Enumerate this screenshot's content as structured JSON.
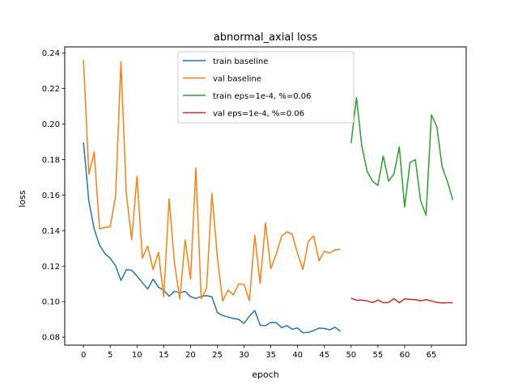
{
  "chart_data": {
    "type": "line",
    "title": "abnormal_axial loss",
    "xlabel": "epoch",
    "ylabel": "loss",
    "xlim": [
      -3.5,
      71.5
    ],
    "ylim": [
      0.0755,
      0.2435
    ],
    "xticks": [
      0,
      5,
      10,
      15,
      20,
      25,
      30,
      35,
      40,
      45,
      50,
      55,
      60,
      65
    ],
    "yticks": [
      0.08,
      0.1,
      0.12,
      0.14,
      0.16,
      0.18,
      0.2,
      0.22,
      0.24
    ],
    "grid": false,
    "legend_position": "top-center",
    "series": [
      {
        "name": "train baseline",
        "color": "#1f77b4",
        "x_start": 0,
        "values": [
          0.1898,
          0.1567,
          0.141,
          0.1318,
          0.1271,
          0.1244,
          0.1202,
          0.1119,
          0.118,
          0.1177,
          0.1144,
          0.1107,
          0.1071,
          0.1127,
          0.1082,
          0.1064,
          0.1031,
          0.1058,
          0.105,
          0.1058,
          0.1028,
          0.1018,
          0.103,
          0.1034,
          0.1027,
          0.0939,
          0.0922,
          0.0914,
          0.0905,
          0.09,
          0.0877,
          0.0919,
          0.095,
          0.0867,
          0.0865,
          0.0883,
          0.0882,
          0.0854,
          0.0865,
          0.0845,
          0.0852,
          0.0825,
          0.0827,
          0.0837,
          0.0851,
          0.0849,
          0.0841,
          0.0856,
          0.0834
        ]
      },
      {
        "name": "val baseline",
        "color": "#ff7f0e",
        "x_start": 0,
        "values": [
          0.2362,
          0.1718,
          0.1843,
          0.141,
          0.1418,
          0.1423,
          0.1595,
          0.2352,
          0.161,
          0.135,
          0.1705,
          0.1245,
          0.1313,
          0.1181,
          0.1278,
          0.1027,
          0.158,
          0.1217,
          0.1015,
          0.1347,
          0.1128,
          0.1753,
          0.1016,
          0.1076,
          0.161,
          0.1254,
          0.1004,
          0.1065,
          0.1039,
          0.11,
          0.1097,
          0.1006,
          0.1373,
          0.1103,
          0.1443,
          0.1186,
          0.1267,
          0.1368,
          0.1393,
          0.138,
          0.127,
          0.1181,
          0.1338,
          0.137,
          0.123,
          0.1284,
          0.1274,
          0.1292,
          0.1295
        ]
      },
      {
        "name": "train eps=1e-4, %=0.06",
        "color": "#2ca02c",
        "x_start": 50,
        "values": [
          0.1893,
          0.2149,
          0.1877,
          0.1733,
          0.1679,
          0.1655,
          0.182,
          0.1679,
          0.1719,
          0.1871,
          0.1533,
          0.1783,
          0.18,
          0.1567,
          0.1487,
          0.2052,
          0.1987,
          0.176,
          0.1676,
          0.1573
        ]
      },
      {
        "name": "val eps=1e-4, %=0.06",
        "color": "#d62728",
        "x_start": 50,
        "values": [
          0.102,
          0.1008,
          0.1008,
          0.1004,
          0.0995,
          0.1009,
          0.0994,
          0.0996,
          0.1017,
          0.0994,
          0.1016,
          0.1013,
          0.1011,
          0.1005,
          0.1011,
          0.1004,
          0.0996,
          0.0993,
          0.0994,
          0.0994
        ]
      }
    ]
  }
}
